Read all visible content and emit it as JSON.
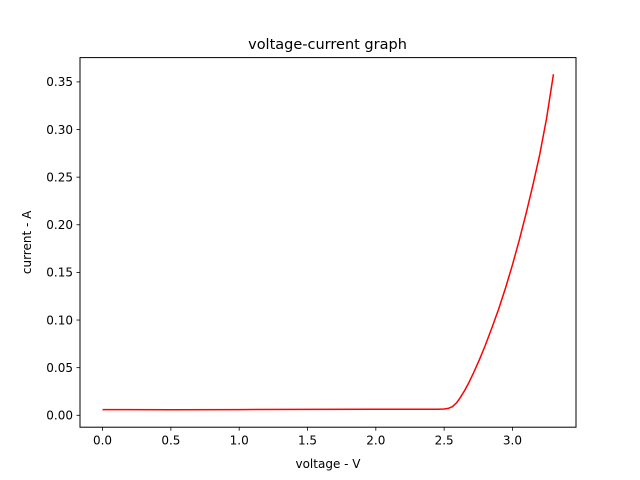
{
  "chart_data": {
    "type": "line",
    "title": "voltage-current graph",
    "xlabel": "voltage - V",
    "ylabel": "current - A",
    "xlim": [
      -0.165,
      3.465
    ],
    "ylim": [
      -0.0125,
      0.3755
    ],
    "xticks": [
      0.0,
      0.5,
      1.0,
      1.5,
      2.0,
      2.5,
      3.0
    ],
    "xtick_labels": [
      "0.0",
      "0.5",
      "1.0",
      "1.5",
      "2.0",
      "2.5",
      "3.0"
    ],
    "yticks": [
      0.0,
      0.05,
      0.1,
      0.15,
      0.2,
      0.25,
      0.3,
      0.35
    ],
    "ytick_labels": [
      "0.00",
      "0.05",
      "0.10",
      "0.15",
      "0.20",
      "0.25",
      "0.30",
      "0.35"
    ],
    "grid": false,
    "series": [
      {
        "color": "#ff0000",
        "x": [
          0.0,
          0.5,
          1.0,
          1.5,
          2.0,
          2.3,
          2.45,
          2.5,
          2.53,
          2.56,
          2.59,
          2.62,
          2.65,
          2.68,
          2.72,
          2.76,
          2.8,
          2.85,
          2.9,
          2.95,
          3.0,
          3.05,
          3.1,
          3.15,
          3.2,
          3.25,
          3.3
        ],
        "y": [
          0.006,
          0.0058,
          0.006,
          0.0062,
          0.0063,
          0.0063,
          0.0064,
          0.0066,
          0.0072,
          0.009,
          0.013,
          0.019,
          0.026,
          0.034,
          0.046,
          0.059,
          0.073,
          0.092,
          0.112,
          0.134,
          0.158,
          0.184,
          0.212,
          0.242,
          0.274,
          0.312,
          0.358
        ]
      }
    ]
  }
}
